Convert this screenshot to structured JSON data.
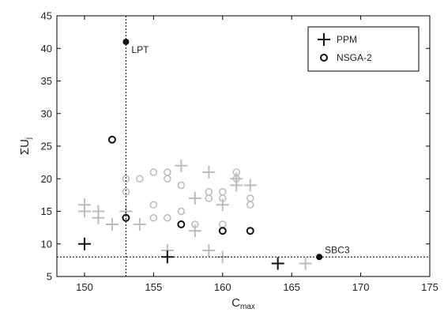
{
  "chart_data": {
    "type": "scatter",
    "title": "",
    "xlabel": "C",
    "xlabel_sub": "max",
    "ylabel": "ΣU",
    "ylabel_sub": "j",
    "xlim": [
      148,
      175
    ],
    "ylim": [
      5,
      45
    ],
    "x_ticks": [
      "150",
      "155",
      "160",
      "165",
      "170",
      "175"
    ],
    "y_ticks": [
      "5",
      "10",
      "15",
      "20",
      "25",
      "30",
      "35",
      "40",
      "45"
    ],
    "grid": false,
    "legend": {
      "placement": "top-right",
      "entries": [
        "PPM",
        "NSGA-2"
      ]
    },
    "reference_lines": {
      "vertical_x": 153,
      "horizontal_y": 8
    },
    "colors": {
      "front": "#111111",
      "background": "#bdbdbd"
    },
    "series": [
      {
        "name": "PPM",
        "marker": "plus",
        "points": [
          [
            150,
            10
          ],
          [
            156,
            8
          ],
          [
            164,
            7
          ]
        ]
      },
      {
        "name": "NSGA-2",
        "marker": "circle",
        "points": [
          [
            152,
            26
          ],
          [
            153,
            14
          ],
          [
            157,
            13
          ],
          [
            160,
            12
          ],
          [
            162,
            12
          ]
        ]
      },
      {
        "marker": "plus",
        "style": "background",
        "points": [
          [
            150,
            16
          ],
          [
            150,
            15
          ],
          [
            151,
            15
          ],
          [
            151,
            14
          ],
          [
            152,
            13
          ],
          [
            153,
            15
          ],
          [
            154,
            13
          ],
          [
            156,
            9
          ],
          [
            157,
            22
          ],
          [
            158,
            17
          ],
          [
            158,
            12
          ],
          [
            159,
            21
          ],
          [
            159,
            9
          ],
          [
            160,
            16
          ],
          [
            160,
            8
          ],
          [
            161,
            20
          ],
          [
            161,
            19
          ],
          [
            162,
            19
          ],
          [
            166,
            7
          ]
        ]
      },
      {
        "marker": "circle",
        "style": "background",
        "points": [
          [
            153,
            20
          ],
          [
            153,
            18
          ],
          [
            154,
            20
          ],
          [
            155,
            21
          ],
          [
            155,
            16
          ],
          [
            155,
            14
          ],
          [
            156,
            21
          ],
          [
            156,
            20
          ],
          [
            156,
            14
          ],
          [
            157,
            19
          ],
          [
            157,
            15
          ],
          [
            158,
            13
          ],
          [
            159,
            18
          ],
          [
            159,
            17
          ],
          [
            160,
            18
          ],
          [
            160,
            17
          ],
          [
            160,
            13
          ],
          [
            161,
            21
          ],
          [
            161,
            20
          ],
          [
            162,
            17
          ],
          [
            162,
            16
          ]
        ]
      },
      {
        "marker": "dot",
        "style": "reference",
        "points": [
          [
            153,
            41
          ],
          [
            167,
            8
          ]
        ]
      }
    ],
    "annotations": [
      {
        "text": "LPT",
        "x": 153,
        "y": 41
      },
      {
        "text": "SBC3",
        "x": 167,
        "y": 8
      }
    ]
  }
}
